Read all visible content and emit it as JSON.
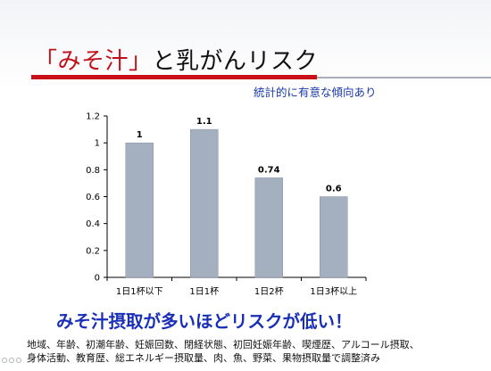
{
  "slide": {
    "title_accent": "「みそ汁」",
    "title_rest": "と乳がんリスク",
    "subtitle": "統計的に有意な傾向あり",
    "headline": "みそ汁摂取が多いほどリスクが低い！",
    "footnote_line1": "地域、年齢、初潮年齢、妊娠回数、閉経状態、初回妊娠年齢、喫煙歴、アルコール摂取、",
    "footnote_line2": "身体活動、教育歴、総エネルギー摂取量、肉、魚、野菜、果物摂取量で調整済み"
  },
  "colors": {
    "accent_red": "#c0101a",
    "bar_fill": "#a4b0bf",
    "headline_blue": "#1a2fb8",
    "subtitle_blue": "#1a3aa8"
  },
  "chart_data": {
    "type": "bar",
    "categories": [
      "1日1杯以下",
      "1日1杯",
      "1日2杯",
      "1日3杯以上"
    ],
    "values": [
      1,
      1.1,
      0.74,
      0.6
    ],
    "data_labels": [
      "1",
      "1.1",
      "0.74",
      "0.6"
    ],
    "ylim": [
      0,
      1.2
    ],
    "yticks": [
      0,
      0.2,
      0.4,
      0.6,
      0.8,
      1,
      1.2
    ],
    "ytick_labels": [
      "0",
      "0.2",
      "0.4",
      "0.6",
      "0.8",
      "1",
      "1.2"
    ],
    "grid": false,
    "legend": "none"
  }
}
